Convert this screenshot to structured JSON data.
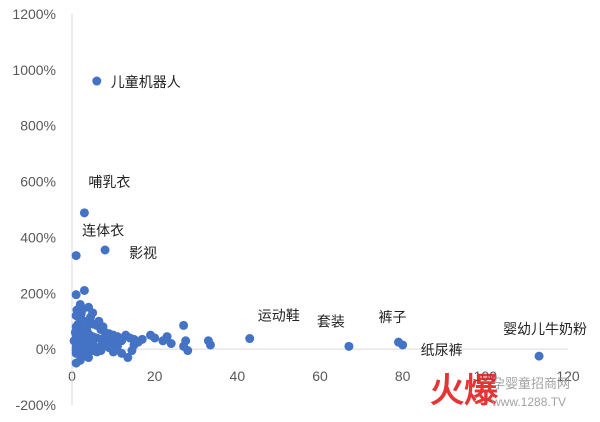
{
  "chart_data": {
    "type": "scatter",
    "title": "",
    "xlabel": "",
    "ylabel": "",
    "xlim": [
      0,
      120
    ],
    "ylim": [
      -200,
      1200
    ],
    "x_ticks": [
      0,
      20,
      40,
      60,
      80,
      100,
      120
    ],
    "y_ticks": [
      -200,
      0,
      200,
      400,
      600,
      800,
      1000,
      1200
    ],
    "y_tick_format": "percent",
    "grid": false,
    "legend": "none",
    "marker_color": "#4472C4",
    "labeled_points": [
      {
        "label": "儿童机器人",
        "x": 6,
        "y": 960
      },
      {
        "label": "哺乳衣",
        "x": 3,
        "y": 488
      },
      {
        "label": "连体衣",
        "x": 1,
        "y": 335
      },
      {
        "label": "影视",
        "x": 8,
        "y": 355
      },
      {
        "label": "运动鞋",
        "x": 43,
        "y": 38
      },
      {
        "label": "套装",
        "x": 67,
        "y": 10
      },
      {
        "label": "裤子",
        "x": 79,
        "y": 25
      },
      {
        "label": "纸尿裤",
        "x": 80,
        "y": 15
      },
      {
        "label": "婴幼儿牛奶粉",
        "x": 113,
        "y": -25
      }
    ],
    "points": [
      [
        6,
        960
      ],
      [
        3,
        488
      ],
      [
        1,
        335
      ],
      [
        8,
        355
      ],
      [
        43,
        38
      ],
      [
        67,
        10
      ],
      [
        79,
        25
      ],
      [
        80,
        15
      ],
      [
        113,
        -25
      ],
      [
        1,
        195
      ],
      [
        3,
        210
      ],
      [
        2,
        160
      ],
      [
        4,
        150
      ],
      [
        5,
        130
      ],
      [
        1,
        120
      ],
      [
        2,
        110
      ],
      [
        3,
        100
      ],
      [
        4,
        95
      ],
      [
        5,
        90
      ],
      [
        6,
        85
      ],
      [
        7,
        70
      ],
      [
        8,
        60
      ],
      [
        9,
        55
      ],
      [
        10,
        50
      ],
      [
        1,
        80
      ],
      [
        2,
        75
      ],
      [
        3,
        65
      ],
      [
        4,
        55
      ],
      [
        5,
        45
      ],
      [
        6,
        40
      ],
      [
        7,
        35
      ],
      [
        1,
        50
      ],
      [
        2,
        45
      ],
      [
        3,
        30
      ],
      [
        4,
        25
      ],
      [
        5,
        20
      ],
      [
        1,
        20
      ],
      [
        2,
        10
      ],
      [
        3,
        5
      ],
      [
        4,
        0
      ],
      [
        5,
        -5
      ],
      [
        6,
        -10
      ],
      [
        1,
        -15
      ],
      [
        2,
        -20
      ],
      [
        3,
        -25
      ],
      [
        4,
        -30
      ],
      [
        2,
        -40
      ],
      [
        1,
        -50
      ],
      [
        0.5,
        30
      ],
      [
        0.8,
        60
      ],
      [
        1.5,
        90
      ],
      [
        2.5,
        140
      ],
      [
        6.5,
        100
      ],
      [
        7.5,
        80
      ],
      [
        8.5,
        40
      ],
      [
        9.5,
        30
      ],
      [
        10.5,
        20
      ],
      [
        11,
        45
      ],
      [
        12,
        30
      ],
      [
        13,
        50
      ],
      [
        13.5,
        -30
      ],
      [
        14,
        40
      ],
      [
        15,
        35
      ],
      [
        14.5,
        -5
      ],
      [
        16,
        25
      ],
      [
        17,
        35
      ],
      [
        19,
        50
      ],
      [
        20,
        40
      ],
      [
        22,
        30
      ],
      [
        23,
        45
      ],
      [
        24,
        20
      ],
      [
        27,
        85
      ],
      [
        27.5,
        30
      ],
      [
        28,
        -5
      ],
      [
        27,
        10
      ],
      [
        33,
        30
      ],
      [
        33.5,
        15
      ],
      [
        10,
        -10
      ],
      [
        9,
        5
      ],
      [
        8,
        20
      ],
      [
        7,
        10
      ],
      [
        6,
        5
      ],
      [
        5,
        2
      ],
      [
        3,
        50
      ],
      [
        2,
        35
      ],
      [
        1,
        5
      ],
      [
        1,
        -5
      ],
      [
        2,
        -10
      ],
      [
        7,
        -5
      ],
      [
        11,
        10
      ],
      [
        12,
        -15
      ],
      [
        15,
        15
      ],
      [
        3.5,
        70
      ],
      [
        4.5,
        115
      ],
      [
        2.2,
        125
      ],
      [
        1.2,
        140
      ]
    ]
  },
  "watermark": {
    "logo": "火爆",
    "text": "孕婴童招商网",
    "url": "www.1288.TV",
    "logo_color": "#e02020"
  }
}
